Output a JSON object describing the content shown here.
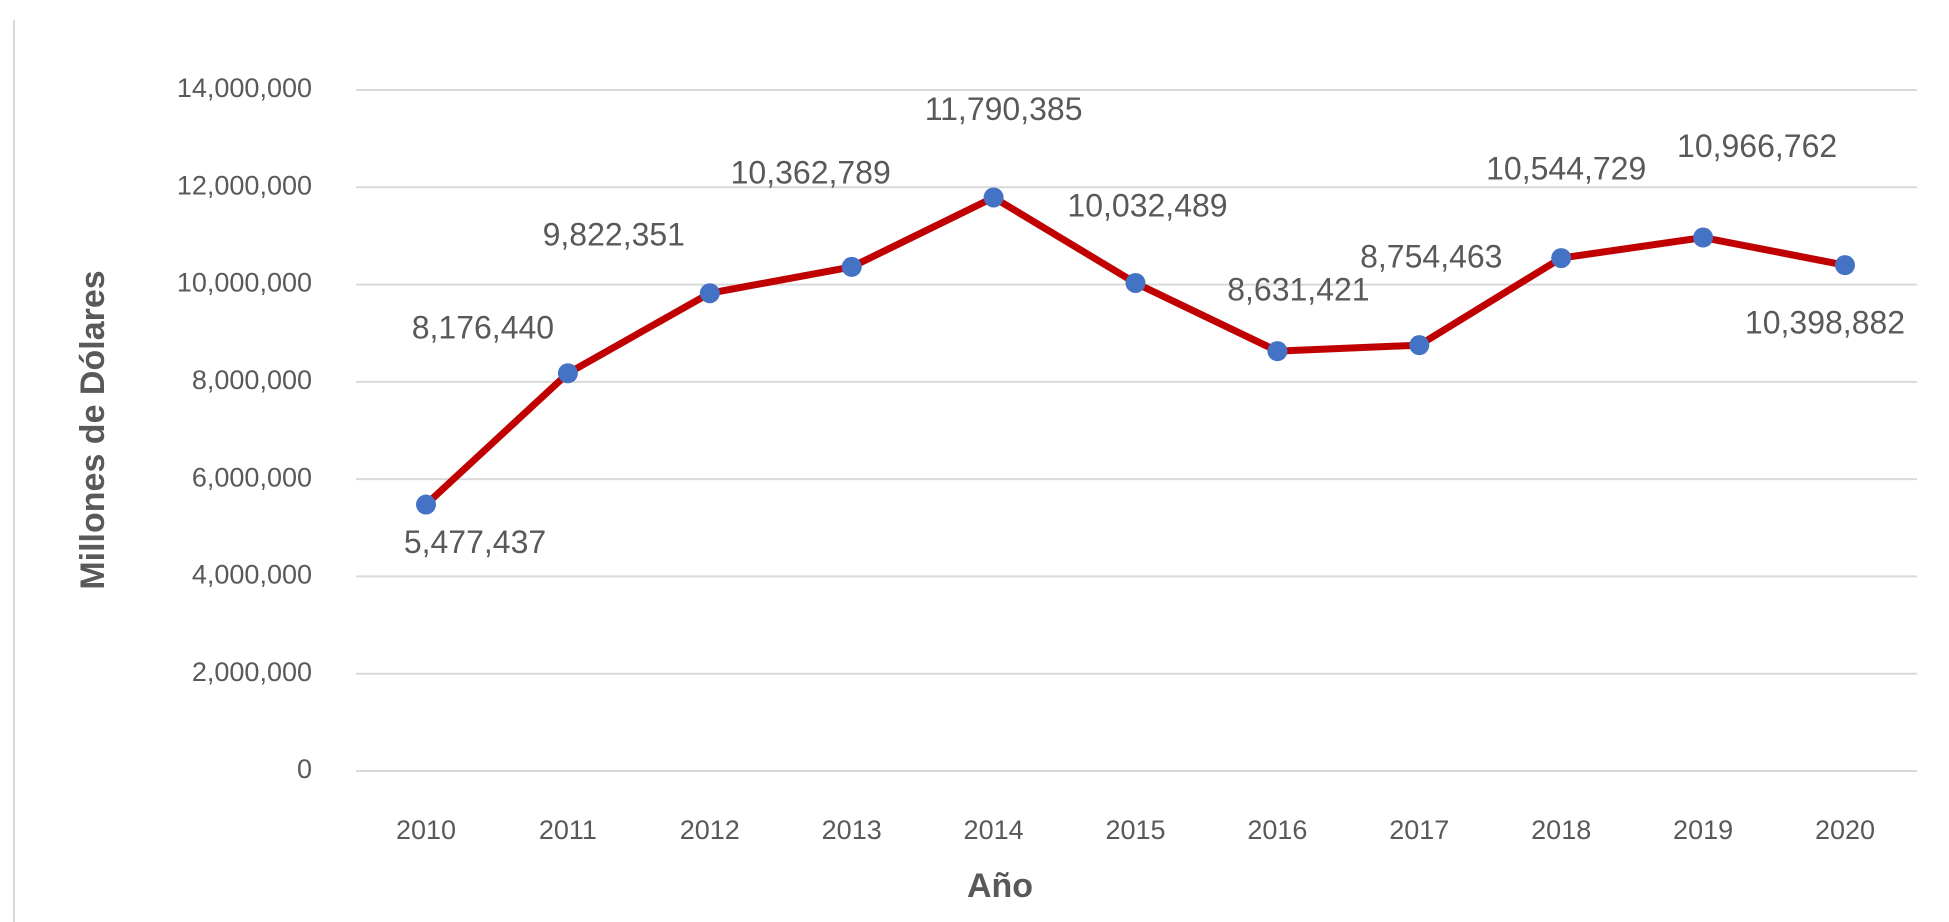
{
  "chart_data": {
    "type": "line",
    "x_label": "Año",
    "y_label": "Millones de Dólares",
    "categories": [
      "2010",
      "2011",
      "2012",
      "2013",
      "2014",
      "2015",
      "2016",
      "2017",
      "2018",
      "2019",
      "2020"
    ],
    "series": [
      {
        "color": "#c00000",
        "marker_color": "#4472c4",
        "values": [
          5477437,
          8176440,
          9822351,
          10362789,
          11790385,
          10032489,
          8631421,
          8754463,
          10544729,
          10966762,
          10398882
        ],
        "value_labels": [
          "5,477,437",
          "8,176,440",
          "9,822,351",
          "10,362,789",
          "11,790,385",
          "10,032,489",
          "8,631,421",
          "8,754,463",
          "10,544,729",
          "10,966,762",
          "10,398,882"
        ]
      }
    ],
    "ylim": [
      0,
      14000000
    ],
    "yticks": [
      0,
      {
        "value": 2000000,
        "label": "2,000,000"
      },
      {
        "value": 4000000,
        "label": "4,000,000"
      },
      {
        "value": 6000000,
        "label": "6,000,000"
      },
      {
        "value": 8000000,
        "label": "8,000,000"
      },
      {
        "value": 10000000,
        "label": "10,000,000"
      },
      {
        "value": 12000000,
        "label": "12,000,000"
      },
      {
        "value": 14000000,
        "label": "14,000,000"
      }
    ],
    "grid": true
  }
}
